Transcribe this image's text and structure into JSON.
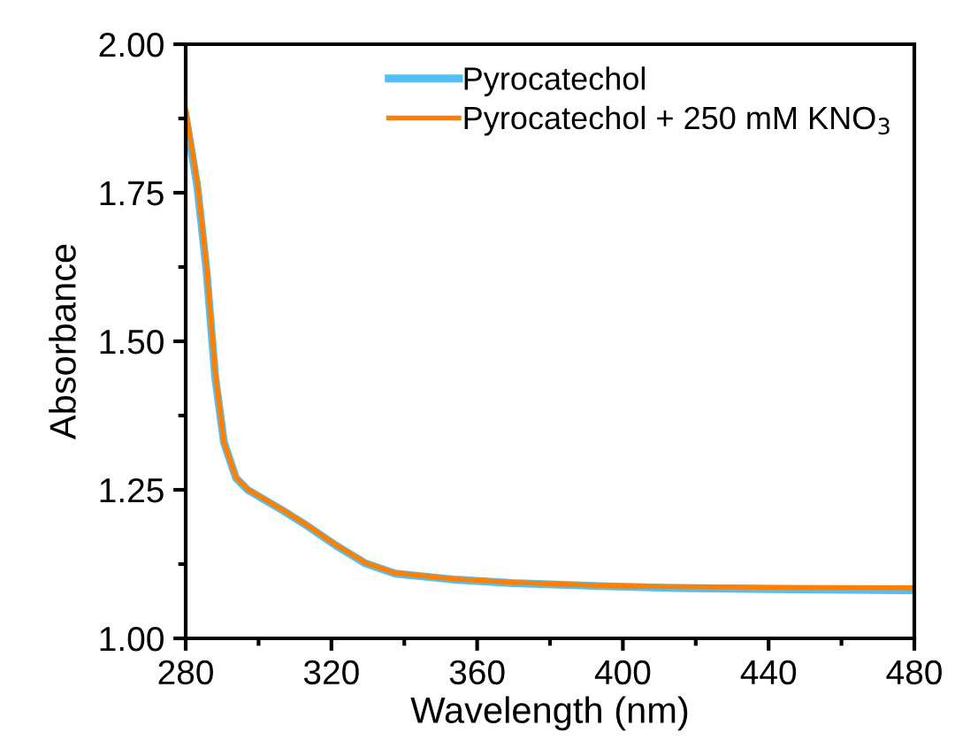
{
  "chart_data": {
    "type": "line",
    "xlabel": "Wavelength (nm)",
    "ylabel": "Absorbance",
    "xlim": [
      280,
      480
    ],
    "ylim": [
      1.0,
      2.0
    ],
    "xticks": [
      280,
      {
        "value": 300,
        "label": null
      },
      320,
      {
        "value": 340,
        "label": null
      },
      360,
      {
        "value": 380,
        "label": null
      },
      400,
      {
        "value": 420,
        "label": null
      },
      440,
      {
        "value": 460,
        "label": null
      },
      480
    ],
    "yticks": [
      {
        "value": 1.0,
        "label": "1.00"
      },
      {
        "value": 1.125,
        "label": null
      },
      1.25,
      {
        "value": 1.375,
        "label": null
      },
      {
        "value": 1.5,
        "label": "1.50"
      },
      {
        "value": 1.625,
        "label": null
      },
      1.75,
      {
        "value": 1.875,
        "label": null
      },
      {
        "value": 2.0,
        "label": "2.00"
      }
    ],
    "grid": false,
    "legend": "top right",
    "marker": "none",
    "line_style": "solid",
    "series": [
      {
        "name": "Pyrocatechol",
        "color": "#55bff5",
        "x": [
          280,
          283.2,
          285.7,
          288.1,
          290.5,
          293.8,
          297,
          306.7,
          313.2,
          321.3,
          329.4,
          337.5,
          353.7,
          369.8,
          394,
          412.4,
          440,
          478,
          480
        ],
        "values": [
          1.88,
          1.76,
          1.62,
          1.44,
          1.33,
          1.27,
          1.25,
          1.215,
          1.19,
          1.156,
          1.126,
          1.109,
          1.099,
          1.093,
          1.088,
          1.085,
          1.083,
          1.081,
          1.081
        ]
      },
      {
        "name": "Pyrocatechol + 250 mM KNO$_{3}$",
        "color": "#ff8000",
        "x": [
          280,
          283.2,
          285.7,
          288.1,
          290.5,
          293.8,
          297,
          306.7,
          313.2,
          321.3,
          329.4,
          337.5,
          353.7,
          369.8,
          394,
          412.4,
          440,
          478,
          480
        ],
        "values": [
          1.89,
          1.767,
          1.628,
          1.449,
          1.33,
          1.271,
          1.251,
          1.216,
          1.191,
          1.157,
          1.127,
          1.11,
          1.1,
          1.094,
          1.089,
          1.087,
          1.086,
          1.085,
          1.085
        ]
      }
    ]
  }
}
